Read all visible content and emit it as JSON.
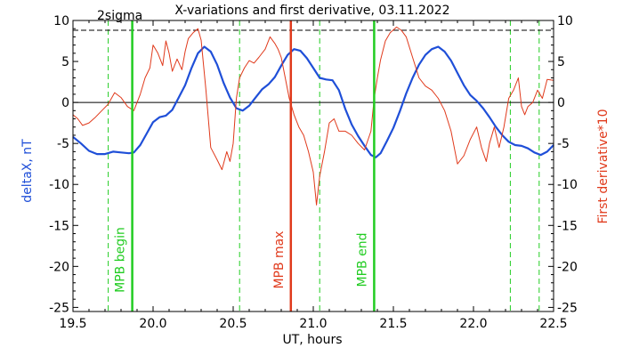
{
  "chart_data": {
    "type": "line",
    "title": "X-variations and first derivative, 03.11.2022",
    "xlabel": "UT, hours",
    "ylabel_left": "deltaX, nT",
    "ylabel_right": "First derivative*10",
    "xlim": [
      19.5,
      22.5
    ],
    "ylim": [
      -25.5,
      10
    ],
    "x_ticks": [
      "19.5",
      "20.0",
      "20.5",
      "21.0",
      "21.5",
      "22.0",
      "22.5"
    ],
    "y_ticks": [
      "10",
      "5",
      "0",
      "-5",
      "-10",
      "-15",
      "-20",
      "-25"
    ],
    "threshold": {
      "label": "2sigma",
      "value": 8.8
    },
    "series": [
      {
        "name": "deltaX, nT",
        "color": "#1f4fd8",
        "x": [
          19.5,
          19.55,
          19.6,
          19.65,
          19.7,
          19.75,
          19.8,
          19.85,
          19.88,
          19.92,
          19.96,
          20.0,
          20.04,
          20.08,
          20.12,
          20.16,
          20.2,
          20.24,
          20.28,
          20.32,
          20.36,
          20.4,
          20.44,
          20.48,
          20.52,
          20.56,
          20.6,
          20.64,
          20.68,
          20.72,
          20.76,
          20.8,
          20.84,
          20.88,
          20.92,
          20.96,
          21.0,
          21.04,
          21.08,
          21.12,
          21.16,
          21.2,
          21.24,
          21.28,
          21.32,
          21.36,
          21.39,
          21.42,
          21.46,
          21.5,
          21.54,
          21.58,
          21.62,
          21.66,
          21.7,
          21.74,
          21.78,
          21.82,
          21.86,
          21.9,
          21.94,
          21.98,
          22.02,
          22.06,
          22.1,
          22.14,
          22.18,
          22.22,
          22.26,
          22.3,
          22.34,
          22.38,
          22.42,
          22.46,
          22.5
        ],
        "values": [
          -4.2,
          -5.0,
          -5.9,
          -6.3,
          -6.3,
          -6.0,
          -6.1,
          -6.2,
          -6.1,
          -5.2,
          -3.8,
          -2.4,
          -1.8,
          -1.6,
          -0.9,
          0.6,
          2.1,
          4.2,
          6.0,
          6.8,
          6.2,
          4.6,
          2.4,
          0.6,
          -0.7,
          -1.0,
          -0.4,
          0.6,
          1.6,
          2.2,
          3.1,
          4.5,
          5.8,
          6.5,
          6.3,
          5.4,
          4.2,
          3.0,
          2.8,
          2.7,
          1.5,
          -0.8,
          -2.7,
          -4.1,
          -5.3,
          -6.4,
          -6.7,
          -6.2,
          -4.7,
          -3.1,
          -1.1,
          1.1,
          3.0,
          4.6,
          5.8,
          6.5,
          6.8,
          6.2,
          5.1,
          3.6,
          2.1,
          0.9,
          0.2,
          -0.7,
          -1.8,
          -3.0,
          -4.0,
          -4.8,
          -5.2,
          -5.3,
          -5.6,
          -6.1,
          -6.4,
          -6.0,
          -5.2
        ]
      },
      {
        "name": "First derivative*10",
        "color": "#e03a1c",
        "x": [
          19.5,
          19.53,
          19.56,
          19.6,
          19.64,
          19.68,
          19.72,
          19.76,
          19.8,
          19.84,
          19.88,
          19.92,
          19.95,
          19.98,
          20.0,
          20.03,
          20.06,
          20.08,
          20.1,
          20.12,
          20.15,
          20.18,
          20.2,
          20.22,
          20.25,
          20.28,
          20.3,
          20.33,
          20.36,
          20.4,
          20.43,
          20.46,
          20.48,
          20.5,
          20.52,
          20.54,
          20.57,
          20.6,
          20.63,
          20.66,
          20.7,
          20.73,
          20.76,
          20.78,
          20.8,
          20.82,
          20.85,
          20.88,
          20.91,
          20.94,
          20.97,
          21.0,
          21.02,
          21.04,
          21.07,
          21.1,
          21.13,
          21.16,
          21.2,
          21.24,
          21.28,
          21.32,
          21.36,
          21.38,
          21.4,
          21.42,
          21.45,
          21.48,
          21.52,
          21.55,
          21.58,
          21.62,
          21.66,
          21.7,
          21.74,
          21.78,
          21.82,
          21.86,
          21.9,
          21.94,
          21.98,
          22.02,
          22.05,
          22.08,
          22.1,
          22.13,
          22.16,
          22.19,
          22.22,
          22.25,
          22.28,
          22.3,
          22.32,
          22.34,
          22.37,
          22.4,
          22.43,
          22.46,
          22.5
        ],
        "values": [
          -1.5,
          -2.0,
          -2.8,
          -2.5,
          -1.8,
          -1.0,
          -0.2,
          1.2,
          0.6,
          -0.5,
          -1.0,
          1.0,
          3.0,
          4.2,
          7.0,
          6.0,
          4.5,
          7.5,
          6.0,
          3.8,
          5.3,
          4.0,
          6.2,
          7.8,
          8.5,
          9.0,
          7.6,
          1.5,
          -5.5,
          -7.0,
          -8.2,
          -6.0,
          -7.2,
          -5.0,
          0.5,
          3.0,
          4.2,
          5.1,
          4.8,
          5.5,
          6.5,
          8.0,
          7.2,
          6.5,
          5.5,
          3.5,
          0.5,
          -1.5,
          -3.0,
          -4.0,
          -6.0,
          -8.5,
          -12.5,
          -9.0,
          -6.0,
          -2.5,
          -2.0,
          -3.5,
          -3.5,
          -4.0,
          -5.0,
          -5.8,
          -3.5,
          0.5,
          3.0,
          5.2,
          7.5,
          8.5,
          9.2,
          8.8,
          8.0,
          5.5,
          3.0,
          2.0,
          1.5,
          0.5,
          -1.0,
          -3.5,
          -7.5,
          -6.5,
          -4.5,
          -3.0,
          -5.5,
          -7.2,
          -5.0,
          -3.0,
          -5.5,
          -3.0,
          0.5,
          1.5,
          3.0,
          -0.5,
          -1.5,
          -0.5,
          0.0,
          1.5,
          0.5,
          2.8,
          2.7
        ]
      }
    ],
    "markers": [
      {
        "label": "MPB begin",
        "x": 19.87,
        "color": "#22cc22"
      },
      {
        "label": "MPB max",
        "x": 20.86,
        "color": "#e03a1c"
      },
      {
        "label": "MPB end",
        "x": 21.38,
        "color": "#22cc22"
      }
    ],
    "dashed_verticals": [
      19.72,
      20.54,
      21.04,
      22.23,
      22.41
    ],
    "dashed_color": "#22cc22",
    "grid": false
  }
}
